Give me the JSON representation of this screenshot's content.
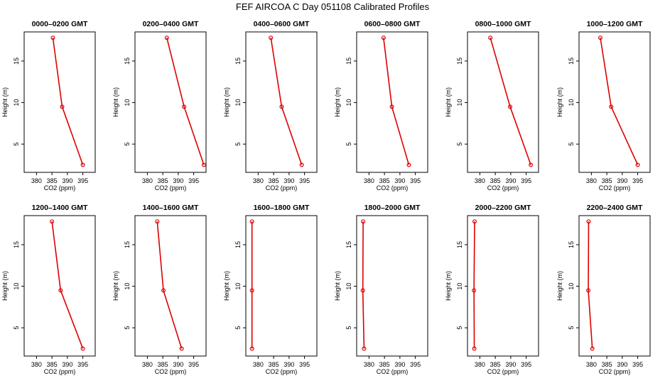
{
  "title": "FEF AIRCOA C  Day 051108  Calibrated Profiles",
  "colors": {
    "series": "#dd0000",
    "axes": "#000000",
    "background": "#ffffff"
  },
  "chart_data": {
    "type": "line",
    "layout": "2x6 small multiples",
    "xlabel": "CO2 (ppm)",
    "ylabel": "Height (m)",
    "xlim": [
      376,
      399
    ],
    "ylim": [
      1.6,
      18.5
    ],
    "xticks": [
      380,
      385,
      390,
      395
    ],
    "yticks": [
      5,
      10,
      15
    ],
    "heights_m": [
      2.5,
      9.5,
      17.8
    ],
    "panels": [
      {
        "title": "0000–0200 GMT",
        "co2": [
          395.0,
          388.3,
          385.3
        ]
      },
      {
        "title": "0200–0400 GMT",
        "co2": [
          398.3,
          391.9,
          386.3
        ]
      },
      {
        "title": "0400–0600 GMT",
        "co2": [
          394.1,
          387.6,
          384.1
        ]
      },
      {
        "title": "0600–0800 GMT",
        "co2": [
          392.9,
          387.4,
          384.7
        ]
      },
      {
        "title": "0800–1000 GMT",
        "co2": [
          396.5,
          389.8,
          383.4
        ]
      },
      {
        "title": "1000–1200 GMT",
        "co2": [
          395.0,
          386.4,
          382.9
        ]
      },
      {
        "title": "1200–1400 GMT",
        "co2": [
          395.0,
          387.8,
          385.0
        ]
      },
      {
        "title": "1400–1600 GMT",
        "co2": [
          391.1,
          385.2,
          383.2
        ]
      },
      {
        "title": "1600–1800 GMT",
        "co2": [
          378.0,
          378.0,
          378.0
        ]
      },
      {
        "title": "1800–2000 GMT",
        "co2": [
          378.4,
          378.0,
          378.1
        ]
      },
      {
        "title": "2000–2200 GMT",
        "co2": [
          378.2,
          378.1,
          378.3
        ]
      },
      {
        "title": "2200–2400 GMT",
        "co2": [
          380.3,
          379.0,
          379.1
        ]
      }
    ]
  }
}
